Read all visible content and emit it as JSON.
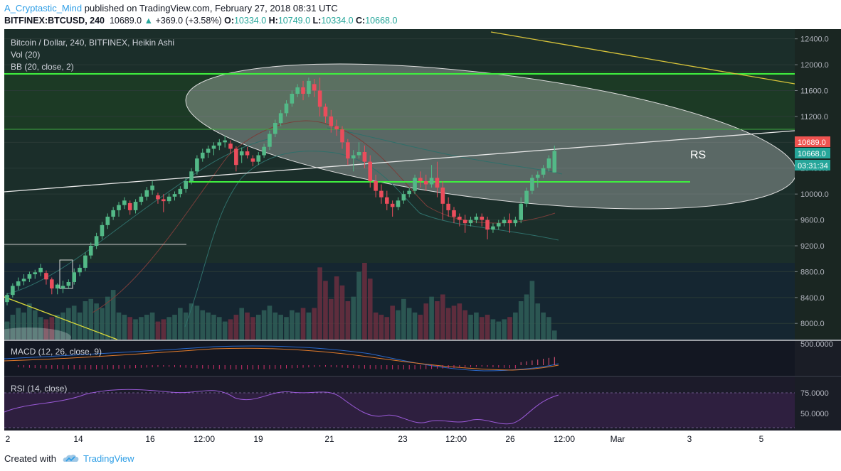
{
  "header": {
    "author": "A_Cryptastic_Mind",
    "published_text": "published on TradingView.com, February 27, 2018 08:31 UTC",
    "symbol": "BITFINEX:BTCUSD, 240",
    "last": "10689.0",
    "change": "+369.0 (+3.58%)",
    "o_label": "O:",
    "o_value": "10334.0",
    "h_label": "H:",
    "h_value": "10749.0",
    "l_label": "L:",
    "l_value": "10334.0",
    "c_label": "C:",
    "c_value": "10668.0"
  },
  "legend": {
    "title": "Bitcoin / Dollar, 240, BITFINEX, Heikin Ashi",
    "vol": "Vol (20)",
    "bb": "BB (20, close, 2)",
    "macd": "MACD (12, 26, close, 9)",
    "rsi": "RSI (14, close)"
  },
  "annotation": "RS",
  "price_axis": {
    "ticks": [
      "12400.0",
      "12000.0",
      "11600.0",
      "11200.0",
      "10800.0",
      "10400.0",
      "10000.0",
      "9600.0",
      "9200.0",
      "8800.0",
      "8400.0",
      "8000.0"
    ],
    "badge_last": "10689.0",
    "badge_close": "10668.0",
    "badge_timer": "03:31:34",
    "last_color": "#ef5350",
    "close_color": "#26a69a"
  },
  "macd_axis": {
    "ticks": [
      "500.0000"
    ]
  },
  "rsi_axis": {
    "ticks": [
      "75.0000",
      "50.0000"
    ]
  },
  "time_axis": {
    "ticks": [
      "2",
      "14",
      "16",
      "12:00",
      "19",
      "21",
      "23",
      "12:00",
      "26",
      "12:00",
      "Mar",
      "3",
      "5"
    ]
  },
  "footer": {
    "created": "Created with",
    "brand": "TradingView"
  },
  "chart_data": {
    "type": "candlestick",
    "title": "Bitcoin / Dollar, 240, BITFINEX, Heikin Ashi",
    "ylim": [
      7750,
      12550
    ],
    "up_color": "#53b987",
    "down_color": "#eb4d5c",
    "candles": [
      {
        "o": 8330,
        "h": 8470,
        "l": 8280,
        "c": 8440
      },
      {
        "o": 8440,
        "h": 8620,
        "l": 8400,
        "c": 8580
      },
      {
        "o": 8580,
        "h": 8710,
        "l": 8520,
        "c": 8650
      },
      {
        "o": 8650,
        "h": 8760,
        "l": 8590,
        "c": 8690
      },
      {
        "o": 8690,
        "h": 8800,
        "l": 8640,
        "c": 8760
      },
      {
        "o": 8760,
        "h": 8830,
        "l": 8690,
        "c": 8790
      },
      {
        "o": 8790,
        "h": 8920,
        "l": 8730,
        "c": 8860
      },
      {
        "o": 8780,
        "h": 8820,
        "l": 8600,
        "c": 8680
      },
      {
        "o": 8680,
        "h": 8710,
        "l": 8450,
        "c": 8540
      },
      {
        "o": 8540,
        "h": 8620,
        "l": 8450,
        "c": 8600
      },
      {
        "o": 8540,
        "h": 8660,
        "l": 8470,
        "c": 8580
      },
      {
        "o": 8580,
        "h": 8680,
        "l": 8530,
        "c": 8640
      },
      {
        "o": 8640,
        "h": 8850,
        "l": 8600,
        "c": 8790
      },
      {
        "o": 8790,
        "h": 8910,
        "l": 8730,
        "c": 8860
      },
      {
        "o": 8860,
        "h": 9100,
        "l": 8810,
        "c": 9050
      },
      {
        "o": 9050,
        "h": 9250,
        "l": 9000,
        "c": 9200
      },
      {
        "o": 9200,
        "h": 9400,
        "l": 9150,
        "c": 9350
      },
      {
        "o": 9350,
        "h": 9570,
        "l": 9300,
        "c": 9520
      },
      {
        "o": 9520,
        "h": 9700,
        "l": 9460,
        "c": 9650
      },
      {
        "o": 9650,
        "h": 9800,
        "l": 9600,
        "c": 9750
      },
      {
        "o": 9750,
        "h": 9880,
        "l": 9650,
        "c": 9830
      },
      {
        "o": 9830,
        "h": 9950,
        "l": 9770,
        "c": 9900
      },
      {
        "o": 9860,
        "h": 9900,
        "l": 9680,
        "c": 9750
      },
      {
        "o": 9750,
        "h": 9920,
        "l": 9700,
        "c": 9880
      },
      {
        "o": 9880,
        "h": 10010,
        "l": 9830,
        "c": 9960
      },
      {
        "o": 9960,
        "h": 10110,
        "l": 9900,
        "c": 10060
      },
      {
        "o": 10060,
        "h": 10200,
        "l": 9990,
        "c": 10130
      },
      {
        "o": 9980,
        "h": 10020,
        "l": 9850,
        "c": 9920
      },
      {
        "o": 9920,
        "h": 10000,
        "l": 9720,
        "c": 9890
      },
      {
        "o": 9890,
        "h": 10010,
        "l": 9850,
        "c": 9960
      },
      {
        "o": 9960,
        "h": 10040,
        "l": 9900,
        "c": 10000
      },
      {
        "o": 10000,
        "h": 10120,
        "l": 9950,
        "c": 10080
      },
      {
        "o": 10080,
        "h": 10250,
        "l": 10020,
        "c": 10200
      },
      {
        "o": 10200,
        "h": 10400,
        "l": 10150,
        "c": 10350
      },
      {
        "o": 10350,
        "h": 10600,
        "l": 10300,
        "c": 10550
      },
      {
        "o": 10550,
        "h": 10700,
        "l": 10500,
        "c": 10640
      },
      {
        "o": 10640,
        "h": 10750,
        "l": 10560,
        "c": 10700
      },
      {
        "o": 10700,
        "h": 10800,
        "l": 10600,
        "c": 10750
      },
      {
        "o": 10750,
        "h": 10850,
        "l": 10680,
        "c": 10800
      },
      {
        "o": 10800,
        "h": 10900,
        "l": 10720,
        "c": 10830
      },
      {
        "o": 10780,
        "h": 10830,
        "l": 10620,
        "c": 10700
      },
      {
        "o": 10700,
        "h": 10740,
        "l": 10350,
        "c": 10450
      },
      {
        "o": 10600,
        "h": 10720,
        "l": 10480,
        "c": 10660
      },
      {
        "o": 10660,
        "h": 10730,
        "l": 10550,
        "c": 10600
      },
      {
        "o": 10550,
        "h": 10600,
        "l": 10430,
        "c": 10500
      },
      {
        "o": 10500,
        "h": 10650,
        "l": 10450,
        "c": 10600
      },
      {
        "o": 10600,
        "h": 10780,
        "l": 10560,
        "c": 10730
      },
      {
        "o": 10730,
        "h": 10980,
        "l": 10680,
        "c": 10930
      },
      {
        "o": 10930,
        "h": 11150,
        "l": 10880,
        "c": 11100
      },
      {
        "o": 11100,
        "h": 11300,
        "l": 11050,
        "c": 11250
      },
      {
        "o": 11250,
        "h": 11450,
        "l": 11200,
        "c": 11400
      },
      {
        "o": 11400,
        "h": 11600,
        "l": 11350,
        "c": 11550
      },
      {
        "o": 11550,
        "h": 11700,
        "l": 11500,
        "c": 11650
      },
      {
        "o": 11650,
        "h": 11750,
        "l": 11450,
        "c": 11550
      },
      {
        "o": 11550,
        "h": 11800,
        "l": 11500,
        "c": 11750
      },
      {
        "o": 11700,
        "h": 11780,
        "l": 11500,
        "c": 11600
      },
      {
        "o": 11600,
        "h": 11800,
        "l": 11200,
        "c": 11350
      },
      {
        "o": 11350,
        "h": 11400,
        "l": 11100,
        "c": 11200
      },
      {
        "o": 11200,
        "h": 11300,
        "l": 10950,
        "c": 11050
      },
      {
        "o": 11050,
        "h": 11150,
        "l": 10900,
        "c": 11000
      },
      {
        "o": 11000,
        "h": 11050,
        "l": 10700,
        "c": 10800
      },
      {
        "o": 10800,
        "h": 10850,
        "l": 10450,
        "c": 10550
      },
      {
        "o": 10550,
        "h": 10680,
        "l": 10350,
        "c": 10600
      },
      {
        "o": 10600,
        "h": 10800,
        "l": 10550,
        "c": 10650
      },
      {
        "o": 10650,
        "h": 10750,
        "l": 10400,
        "c": 10500
      },
      {
        "o": 10500,
        "h": 10600,
        "l": 10100,
        "c": 10200
      },
      {
        "o": 10200,
        "h": 10300,
        "l": 9950,
        "c": 10050
      },
      {
        "o": 10050,
        "h": 10150,
        "l": 9850,
        "c": 9950
      },
      {
        "o": 9950,
        "h": 10050,
        "l": 9750,
        "c": 9850
      },
      {
        "o": 9850,
        "h": 9900,
        "l": 9650,
        "c": 9800
      },
      {
        "o": 9800,
        "h": 9950,
        "l": 9750,
        "c": 9900
      },
      {
        "o": 9900,
        "h": 10050,
        "l": 9850,
        "c": 10000
      },
      {
        "o": 10000,
        "h": 10100,
        "l": 9950,
        "c": 10050
      },
      {
        "o": 10050,
        "h": 10300,
        "l": 10000,
        "c": 10250
      },
      {
        "o": 10250,
        "h": 10350,
        "l": 10100,
        "c": 10200
      },
      {
        "o": 10200,
        "h": 10300,
        "l": 10050,
        "c": 10150
      },
      {
        "o": 10150,
        "h": 10450,
        "l": 10100,
        "c": 10250
      },
      {
        "o": 10250,
        "h": 10500,
        "l": 9950,
        "c": 10100
      },
      {
        "o": 10100,
        "h": 10200,
        "l": 9600,
        "c": 9850
      },
      {
        "o": 9850,
        "h": 9950,
        "l": 9650,
        "c": 9750
      },
      {
        "o": 9750,
        "h": 9800,
        "l": 9550,
        "c": 9650
      },
      {
        "o": 9650,
        "h": 9700,
        "l": 9500,
        "c": 9600
      },
      {
        "o": 9600,
        "h": 9680,
        "l": 9400,
        "c": 9550
      },
      {
        "o": 9550,
        "h": 9650,
        "l": 9500,
        "c": 9600
      },
      {
        "o": 9600,
        "h": 9700,
        "l": 9550,
        "c": 9650
      },
      {
        "o": 9650,
        "h": 9700,
        "l": 9500,
        "c": 9600
      },
      {
        "o": 9600,
        "h": 9650,
        "l": 9300,
        "c": 9450
      },
      {
        "o": 9450,
        "h": 9550,
        "l": 9400,
        "c": 9500
      },
      {
        "o": 9500,
        "h": 9600,
        "l": 9450,
        "c": 9550
      },
      {
        "o": 9550,
        "h": 9650,
        "l": 9500,
        "c": 9600
      },
      {
        "o": 9600,
        "h": 9700,
        "l": 9400,
        "c": 9550
      },
      {
        "o": 9550,
        "h": 9650,
        "l": 9500,
        "c": 9600
      },
      {
        "o": 9600,
        "h": 9950,
        "l": 9550,
        "c": 9850
      },
      {
        "o": 9850,
        "h": 10100,
        "l": 9800,
        "c": 10050
      },
      {
        "o": 10050,
        "h": 10300,
        "l": 10000,
        "c": 10250
      },
      {
        "o": 10250,
        "h": 10350,
        "l": 10100,
        "c": 10300
      },
      {
        "o": 10300,
        "h": 10450,
        "l": 10250,
        "c": 10400
      },
      {
        "o": 10400,
        "h": 10600,
        "l": 10350,
        "c": 10550
      },
      {
        "o": 10334,
        "h": 10749,
        "l": 10334,
        "c": 10668
      }
    ],
    "volume": [
      40,
      55,
      70,
      60,
      80,
      65,
      50,
      45,
      50,
      55,
      60,
      70,
      75,
      60,
      85,
      90,
      80,
      70,
      95,
      110,
      60,
      55,
      50,
      45,
      50,
      55,
      60,
      40,
      45,
      50,
      55,
      70,
      60,
      80,
      75,
      65,
      60,
      55,
      50,
      40,
      45,
      55,
      70,
      60,
      50,
      55,
      65,
      75,
      60,
      55,
      50,
      65,
      60,
      70,
      60,
      70,
      160,
      130,
      90,
      140,
      120,
      85,
      95,
      150,
      170,
      135,
      60,
      55,
      50,
      75,
      65,
      90,
      70,
      60,
      55,
      80,
      95,
      85,
      100,
      70,
      75,
      80,
      65,
      55,
      60,
      50,
      55,
      45,
      40,
      45,
      50,
      60,
      85,
      100,
      130,
      80,
      60,
      50,
      20
    ],
    "levels": {
      "resistance": 11760,
      "upper_band": 10800,
      "support": 10060,
      "neckline_start": 9930,
      "neckline_end": 10870
    }
  }
}
